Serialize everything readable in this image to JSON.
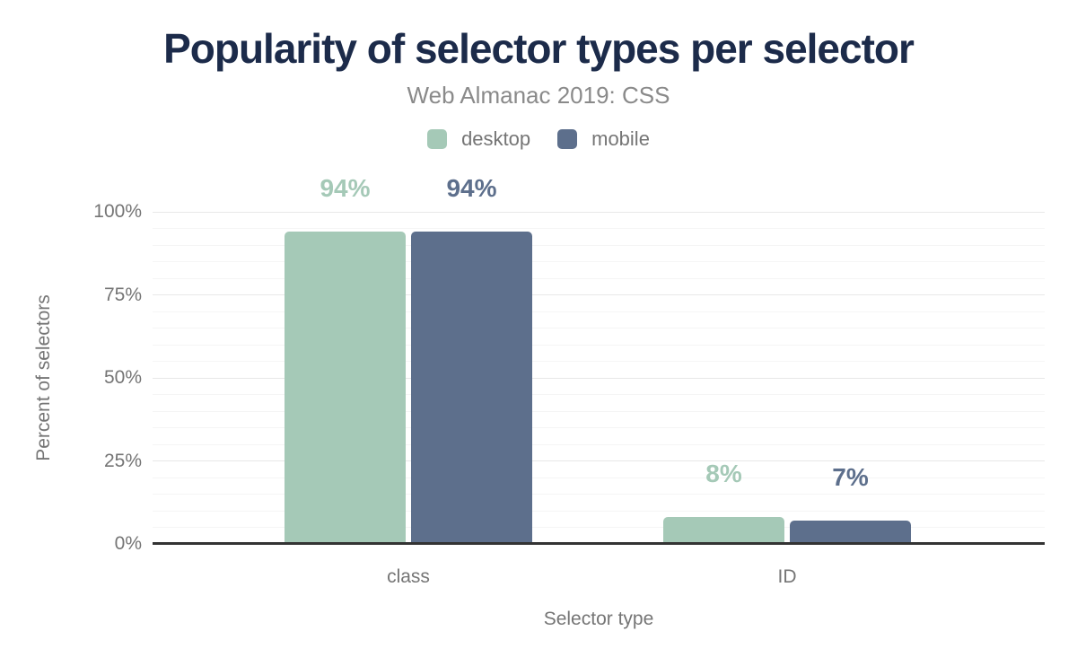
{
  "chart_data": {
    "type": "bar",
    "title": "Popularity of selector types per selector",
    "subtitle": "Web Almanac 2019: CSS",
    "xlabel": "Selector type",
    "ylabel": "Percent of selectors",
    "categories": [
      "class",
      "ID"
    ],
    "series": [
      {
        "name": "desktop",
        "color": "#a5c9b7",
        "values": [
          94,
          8
        ],
        "value_labels": [
          "94%",
          "8%"
        ]
      },
      {
        "name": "mobile",
        "color": "#5d6f8c",
        "values": [
          94,
          7
        ],
        "value_labels": [
          "94%",
          "7%"
        ]
      }
    ],
    "ylim": [
      0,
      100
    ],
    "y_major_ticks": [
      0,
      25,
      50,
      75,
      100
    ],
    "y_tick_labels": [
      "0%",
      "25%",
      "50%",
      "75%",
      "100%"
    ],
    "y_minor_step": 5,
    "grid": "horizontal gridlines, minor every 5%, major every 25%",
    "legend_position": "top-center"
  },
  "colors": {
    "title": "#1c2b4a",
    "subtitle": "#8a8a8a",
    "axis_text": "#757575",
    "axis_line": "#333333",
    "grid_major": "#e8e8e8",
    "grid_minor": "#f5f5f5",
    "background": "#ffffff",
    "desktop_series": "#a5c9b7",
    "mobile_series": "#5d6f8c"
  }
}
